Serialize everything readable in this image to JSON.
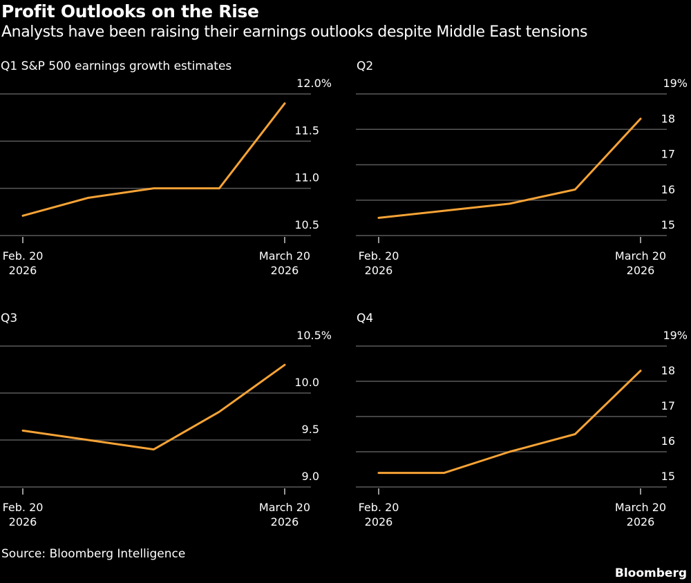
{
  "header": {
    "title": "Profit Outlooks on the Rise",
    "subtitle": "Analysts have been raising their earnings outlooks despite Middle East tensions"
  },
  "footer": {
    "source": "Source: Bloomberg Intelligence",
    "logo": "Bloomberg"
  },
  "colors": {
    "background": "#000000",
    "line": "#f7a336",
    "grid": "#5a5a5a",
    "text": "#ffffff"
  },
  "chart_data": [
    {
      "type": "line",
      "title": "Q1 S&P 500 earnings growth estimates",
      "x_tick_labels": [
        [
          "Feb. 20",
          "2026"
        ],
        [
          "March 20",
          "2026"
        ]
      ],
      "y_ticks": [
        10.5,
        11.0,
        11.5,
        12.0
      ],
      "y_tick_labels": [
        "10.5",
        "11.0",
        "11.5",
        "12.0%"
      ],
      "ylim": [
        10.5,
        12.0
      ],
      "grid": true,
      "series": [
        {
          "values": [
            10.71,
            10.9,
            11.0,
            11.0,
            11.9
          ]
        }
      ]
    },
    {
      "type": "line",
      "title": "Q2",
      "x_tick_labels": [
        [
          "Feb. 20",
          "2026"
        ],
        [
          "March 20",
          "2026"
        ]
      ],
      "y_ticks": [
        15,
        16,
        17,
        18,
        19
      ],
      "y_tick_labels": [
        "15",
        "16",
        "17",
        "18",
        "19%"
      ],
      "ylim": [
        15,
        19
      ],
      "grid": true,
      "series": [
        {
          "values": [
            15.5,
            15.7,
            15.9,
            16.3,
            18.3
          ]
        }
      ]
    },
    {
      "type": "line",
      "title": "Q3",
      "x_tick_labels": [
        [
          "Feb. 20",
          "2026"
        ],
        [
          "March 20",
          "2026"
        ]
      ],
      "y_ticks": [
        9.0,
        9.5,
        10.0,
        10.5
      ],
      "y_tick_labels": [
        "9.0",
        "9.5",
        "10.0",
        "10.5%"
      ],
      "ylim": [
        9.0,
        10.5
      ],
      "grid": true,
      "series": [
        {
          "values": [
            9.6,
            9.5,
            9.4,
            9.8,
            10.3
          ]
        }
      ]
    },
    {
      "type": "line",
      "title": "Q4",
      "x_tick_labels": [
        [
          "Feb. 20",
          "2026"
        ],
        [
          "March 20",
          "2026"
        ]
      ],
      "y_ticks": [
        15,
        16,
        17,
        18,
        19
      ],
      "y_tick_labels": [
        "15",
        "16",
        "17",
        "18",
        "19%"
      ],
      "ylim": [
        15,
        19
      ],
      "grid": true,
      "series": [
        {
          "values": [
            15.4,
            15.4,
            16.0,
            16.5,
            18.3
          ]
        }
      ]
    }
  ]
}
